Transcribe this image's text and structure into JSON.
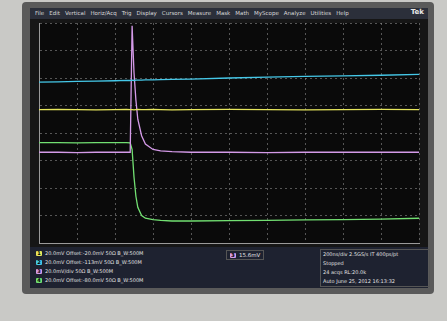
{
  "chart_data": {
    "type": "line",
    "x": [
      0,
      0.5,
      1,
      1.5,
      2,
      2.3,
      2.4,
      2.45,
      2.5,
      2.55,
      2.6,
      2.7,
      2.8,
      3,
      3.2,
      3.5,
      4,
      5,
      6,
      7,
      8,
      9,
      10
    ],
    "series": [
      {
        "color": "#e6e65c",
        "values": [
          0.85,
          0.86,
          0.85,
          0.84,
          0.85,
          0.86,
          0.85,
          0.85,
          0.84,
          0.85,
          0.86,
          0.85,
          0.85,
          0.86,
          0.85,
          0.84,
          0.85,
          0.86,
          0.85,
          0.84,
          0.85,
          0.86,
          0.85
        ]
      },
      {
        "color": "#45c8e8",
        "values": [
          1.85,
          1.86,
          1.88,
          1.89,
          1.9,
          1.91,
          1.91,
          1.92,
          1.91,
          1.92,
          1.92,
          1.92,
          1.93,
          1.93,
          1.94,
          1.95,
          1.96,
          2.0,
          2.03,
          2.06,
          2.08,
          2.1,
          2.13
        ]
      },
      {
        "color": "#d49ae8",
        "values": [
          -0.7,
          -0.7,
          -0.71,
          -0.7,
          -0.7,
          -0.7,
          -0.7,
          3.9,
          2.2,
          1.2,
          0.5,
          -0.1,
          -0.4,
          -0.6,
          -0.65,
          -0.68,
          -0.7,
          -0.7,
          -0.71,
          -0.7,
          -0.7,
          -0.7,
          -0.7
        ]
      },
      {
        "color": "#72e072",
        "values": [
          -0.35,
          -0.35,
          -0.36,
          -0.35,
          -0.35,
          -0.35,
          -0.36,
          -0.6,
          -1.6,
          -2.3,
          -2.7,
          -3.0,
          -3.1,
          -3.15,
          -3.18,
          -3.2,
          -3.2,
          -3.19,
          -3.18,
          -3.16,
          -3.15,
          -3.13,
          -3.1
        ]
      }
    ],
    "xlim": [
      0,
      10
    ],
    "ylim": [
      -4,
      4
    ],
    "xticks": [
      0,
      1,
      2,
      3,
      4,
      5,
      6,
      7,
      8,
      9,
      10
    ],
    "yticks": [
      -4,
      -3,
      -2,
      -1,
      0,
      1,
      2,
      3,
      4
    ],
    "grid": true,
    "tick_labels": false
  },
  "screen": {
    "brand": "Tek",
    "menu": [
      "File",
      "Edit",
      "Vertical",
      "Horiz/Acq",
      "Trig",
      "Display",
      "Cursors",
      "Measure",
      "Mask",
      "Math",
      "MyScope",
      "Analyze",
      "Utilities",
      "Help"
    ],
    "channels": [
      {
        "channel": "1",
        "text": "20.0mV Offset:-20.0mV 50Ω B_W:500M"
      },
      {
        "channel": "2",
        "text": "20.0mV Offset:-113mV 50Ω B_W:500M"
      },
      {
        "channel": "3",
        "text": "20.0mV/div 50Ω B_W:500M"
      },
      {
        "channel": "4",
        "text": "20.0mV Offset:-80.0mV 50Ω B_W:500M"
      }
    ],
    "trigger": {
      "channel": "3",
      "text": "15.6mV"
    },
    "timebase": [
      "200ns/div 2.5GS/s IT 400ps/pt",
      "Stopped",
      "24 acqs RL:20.0k",
      "Auto June 25, 2012 16:13:32"
    ]
  }
}
